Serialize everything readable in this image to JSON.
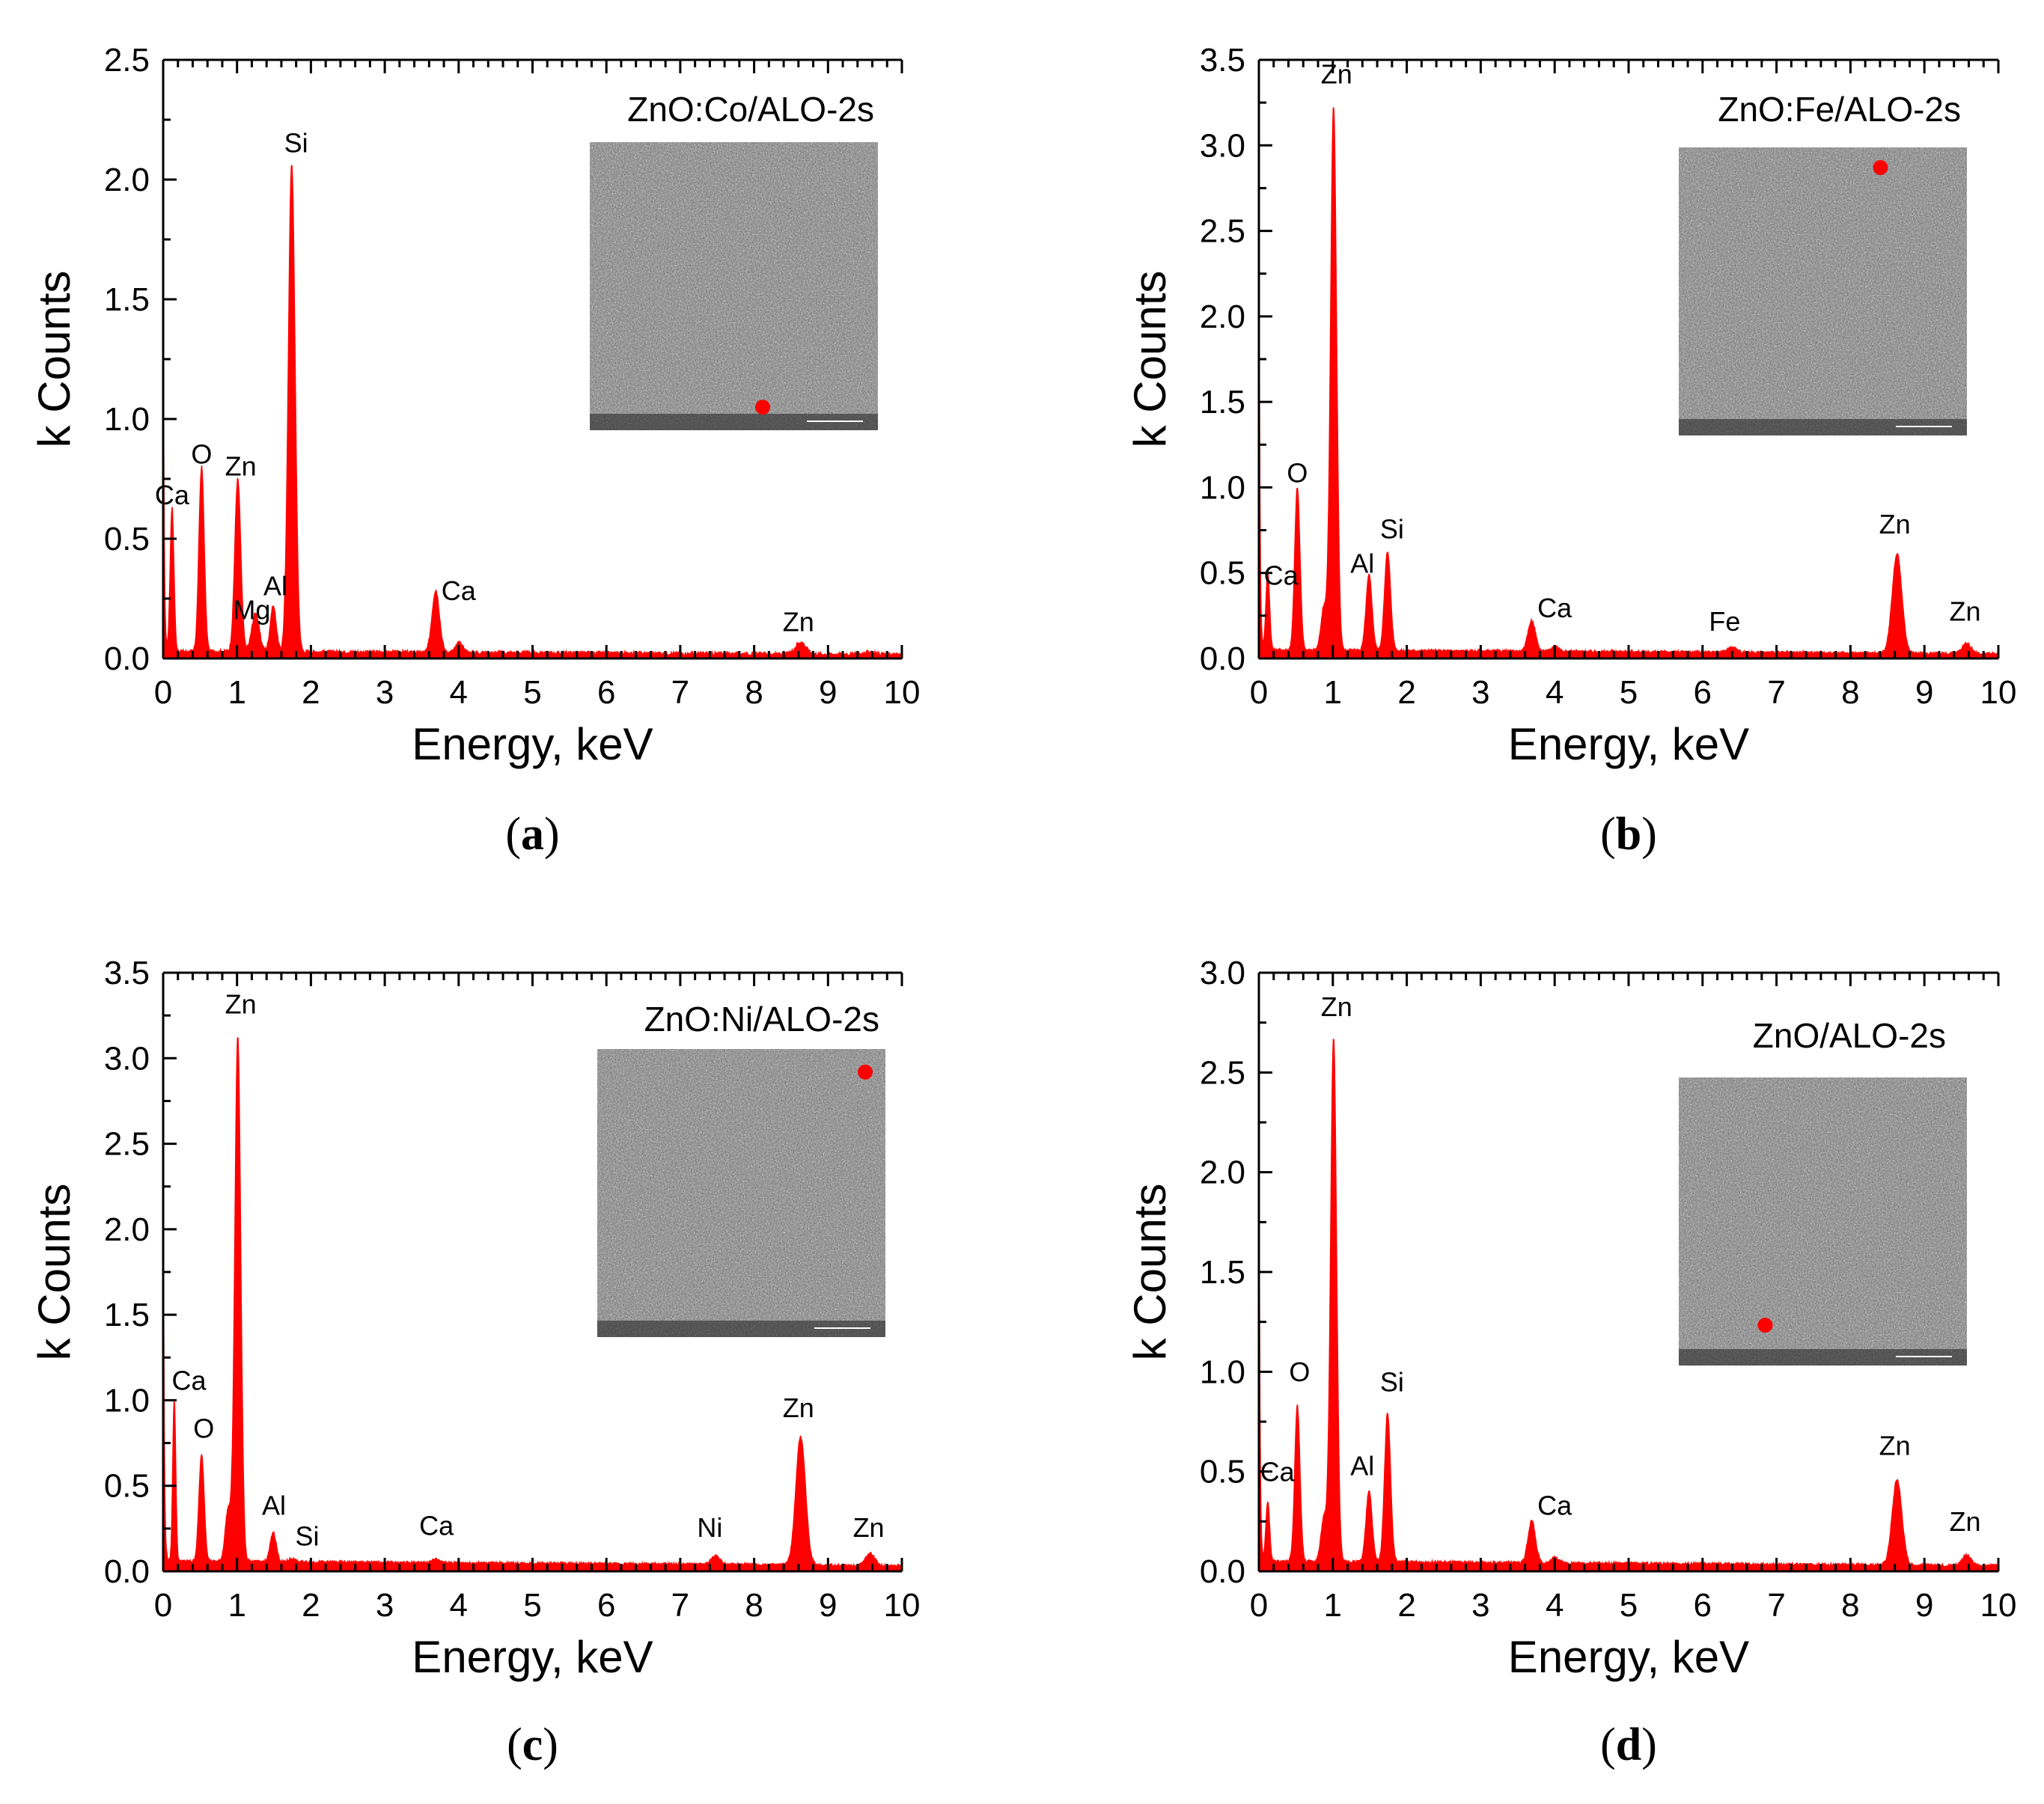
{
  "colors": {
    "spectrum": "#ff0000",
    "axis": "#000000",
    "inset_bg": "#7a7a7a",
    "marker": "#ff0000"
  },
  "chart_data": [
    {
      "type": "area",
      "panel": "a",
      "sample": "ZnO:Co/ALO-2s",
      "xlabel": "Energy, keV",
      "ylabel": "k Counts",
      "xlim": [
        0,
        10
      ],
      "ylim": [
        0,
        2.5
      ],
      "xticks": [
        "0",
        "1",
        "2",
        "3",
        "4",
        "5",
        "6",
        "7",
        "8",
        "9",
        "10"
      ],
      "yticks": [
        "0.0",
        "0.5",
        "1.0",
        "1.5",
        "2.0",
        "2.5"
      ],
      "baseline": 0.03,
      "onset": 1.62,
      "peaks": [
        {
          "x": 0.12,
          "y": 0.6,
          "w": 0.025
        },
        {
          "x": 0.52,
          "y": 0.77,
          "w": 0.035
        },
        {
          "x": 1.01,
          "y": 0.72,
          "w": 0.04
        },
        {
          "x": 1.25,
          "y": 0.16,
          "w": 0.05
        },
        {
          "x": 1.49,
          "y": 0.19,
          "w": 0.04
        },
        {
          "x": 1.74,
          "y": 2.04,
          "w": 0.045
        },
        {
          "x": 3.69,
          "y": 0.26,
          "w": 0.05
        },
        {
          "x": 4.01,
          "y": 0.04,
          "w": 0.05
        },
        {
          "x": 8.63,
          "y": 0.05,
          "w": 0.07
        },
        {
          "x": 9.57,
          "y": 0.01,
          "w": 0.06
        }
      ],
      "peak_labels": [
        {
          "text": "Ca",
          "x": 0.12,
          "y": 0.6
        },
        {
          "text": "O",
          "x": 0.52,
          "y": 0.77
        },
        {
          "text": "Zn",
          "x": 1.05,
          "y": 0.72
        },
        {
          "text": "Mg",
          "x": 1.2,
          "y": 0.12
        },
        {
          "text": "Al",
          "x": 1.52,
          "y": 0.22
        },
        {
          "text": "Si",
          "x": 1.8,
          "y": 2.07
        },
        {
          "text": "Ca",
          "x": 4.0,
          "y": 0.2
        },
        {
          "text": "Zn",
          "x": 8.6,
          "y": 0.07
        }
      ],
      "inset": {
        "marker_x": 0.6,
        "marker_y": 0.92
      }
    },
    {
      "type": "area",
      "panel": "b",
      "sample": "ZnO:Fe/ALO-2s",
      "xlabel": "Energy, keV",
      "ylabel": "k Counts",
      "xlim": [
        0,
        10
      ],
      "ylim": [
        0,
        3.5
      ],
      "xticks": [
        "0",
        "1",
        "2",
        "3",
        "4",
        "5",
        "6",
        "7",
        "8",
        "9",
        "10"
      ],
      "yticks": [
        "0.0",
        "0.5",
        "1.0",
        "1.5",
        "2.0",
        "2.5",
        "3.0",
        "3.5"
      ],
      "baseline": 0.05,
      "onset": 2.9,
      "peaks": [
        {
          "x": 0.12,
          "y": 0.45,
          "w": 0.025
        },
        {
          "x": 0.52,
          "y": 0.95,
          "w": 0.035
        },
        {
          "x": 0.88,
          "y": 0.25,
          "w": 0.04
        },
        {
          "x": 1.01,
          "y": 3.18,
          "w": 0.04
        },
        {
          "x": 1.49,
          "y": 0.44,
          "w": 0.04
        },
        {
          "x": 1.74,
          "y": 0.58,
          "w": 0.04
        },
        {
          "x": 3.69,
          "y": 0.18,
          "w": 0.05
        },
        {
          "x": 4.01,
          "y": 0.03,
          "w": 0.05
        },
        {
          "x": 6.4,
          "y": 0.03,
          "w": 0.06
        },
        {
          "x": 8.63,
          "y": 0.58,
          "w": 0.065
        },
        {
          "x": 9.57,
          "y": 0.06,
          "w": 0.06
        }
      ],
      "peak_labels": [
        {
          "text": "Zn",
          "x": 1.05,
          "y": 3.3
        },
        {
          "text": "O",
          "x": 0.52,
          "y": 0.97
        },
        {
          "text": "Ca",
          "x": 0.3,
          "y": 0.37
        },
        {
          "text": "Al",
          "x": 1.4,
          "y": 0.44
        },
        {
          "text": "Si",
          "x": 1.8,
          "y": 0.64
        },
        {
          "text": "Ca",
          "x": 4.0,
          "y": 0.18
        },
        {
          "text": "Fe",
          "x": 6.3,
          "y": 0.1
        },
        {
          "text": "Zn",
          "x": 8.6,
          "y": 0.67
        },
        {
          "text": "Zn",
          "x": 9.55,
          "y": 0.16
        }
      ],
      "inset": {
        "marker_x": 0.7,
        "marker_y": 0.07
      }
    },
    {
      "type": "area",
      "panel": "c",
      "sample": "ZnO:Ni/ALO-2s",
      "xlabel": "Energy, keV",
      "ylabel": "k Counts",
      "xlim": [
        0,
        10
      ],
      "ylim": [
        0,
        3.5
      ],
      "xticks": [
        "0",
        "1",
        "2",
        "3",
        "4",
        "5",
        "6",
        "7",
        "8",
        "9",
        "10"
      ],
      "yticks": [
        "0.0",
        "0.5",
        "1.0",
        "1.5",
        "2.0",
        "2.5",
        "3.0",
        "3.5"
      ],
      "baseline": 0.06,
      "onset": 2.65,
      "peaks": [
        {
          "x": 0.15,
          "y": 0.95,
          "w": 0.02
        },
        {
          "x": 0.52,
          "y": 0.62,
          "w": 0.035
        },
        {
          "x": 0.88,
          "y": 0.3,
          "w": 0.04
        },
        {
          "x": 1.01,
          "y": 3.07,
          "w": 0.04
        },
        {
          "x": 1.49,
          "y": 0.17,
          "w": 0.04
        },
        {
          "x": 1.74,
          "y": 0.02,
          "w": 0.04
        },
        {
          "x": 3.69,
          "y": 0.02,
          "w": 0.05
        },
        {
          "x": 7.48,
          "y": 0.05,
          "w": 0.06
        },
        {
          "x": 8.63,
          "y": 0.75,
          "w": 0.065
        },
        {
          "x": 9.57,
          "y": 0.07,
          "w": 0.06
        }
      ],
      "peak_labels": [
        {
          "text": "Zn",
          "x": 1.05,
          "y": 3.2
        },
        {
          "text": "Ca",
          "x": 0.35,
          "y": 1.0
        },
        {
          "text": "O",
          "x": 0.55,
          "y": 0.72
        },
        {
          "text": "Al",
          "x": 1.5,
          "y": 0.27
        },
        {
          "text": "Si",
          "x": 1.95,
          "y": 0.09
        },
        {
          "text": "Ca",
          "x": 3.7,
          "y": 0.15
        },
        {
          "text": "Ni",
          "x": 7.4,
          "y": 0.14
        },
        {
          "text": "Zn",
          "x": 8.6,
          "y": 0.84
        },
        {
          "text": "Zn",
          "x": 9.55,
          "y": 0.14
        }
      ],
      "inset": {
        "marker_x": 0.93,
        "marker_y": 0.08
      }
    },
    {
      "type": "area",
      "panel": "d",
      "sample": "ZnO/ALO-2s",
      "xlabel": "Energy, keV",
      "ylabel": "k Counts",
      "xlim": [
        0,
        10
      ],
      "ylim": [
        0,
        3.0
      ],
      "xticks": [
        "0",
        "1",
        "2",
        "3",
        "4",
        "5",
        "6",
        "7",
        "8",
        "9",
        "10"
      ],
      "yticks": [
        "0.0",
        "0.5",
        "1.0",
        "1.5",
        "2.0",
        "2.5",
        "3.0"
      ],
      "baseline": 0.05,
      "onset": 2.6,
      "peaks": [
        {
          "x": 0.12,
          "y": 0.3,
          "w": 0.025
        },
        {
          "x": 0.52,
          "y": 0.78,
          "w": 0.035
        },
        {
          "x": 0.88,
          "y": 0.22,
          "w": 0.04
        },
        {
          "x": 1.01,
          "y": 2.63,
          "w": 0.04
        },
        {
          "x": 1.49,
          "y": 0.36,
          "w": 0.04
        },
        {
          "x": 1.74,
          "y": 0.75,
          "w": 0.04
        },
        {
          "x": 3.69,
          "y": 0.21,
          "w": 0.05
        },
        {
          "x": 4.01,
          "y": 0.03,
          "w": 0.05
        },
        {
          "x": 8.63,
          "y": 0.43,
          "w": 0.065
        },
        {
          "x": 9.57,
          "y": 0.05,
          "w": 0.06
        }
      ],
      "peak_labels": [
        {
          "text": "Zn",
          "x": 1.05,
          "y": 2.73
        },
        {
          "text": "O",
          "x": 0.55,
          "y": 0.9
        },
        {
          "text": "Ca",
          "x": 0.25,
          "y": 0.4
        },
        {
          "text": "Al",
          "x": 1.4,
          "y": 0.43
        },
        {
          "text": "Si",
          "x": 1.8,
          "y": 0.85
        },
        {
          "text": "Ca",
          "x": 4.0,
          "y": 0.23
        },
        {
          "text": "Zn",
          "x": 8.6,
          "y": 0.53
        },
        {
          "text": "Zn",
          "x": 9.55,
          "y": 0.15
        }
      ],
      "inset": {
        "marker_x": 0.3,
        "marker_y": 0.86
      }
    }
  ]
}
